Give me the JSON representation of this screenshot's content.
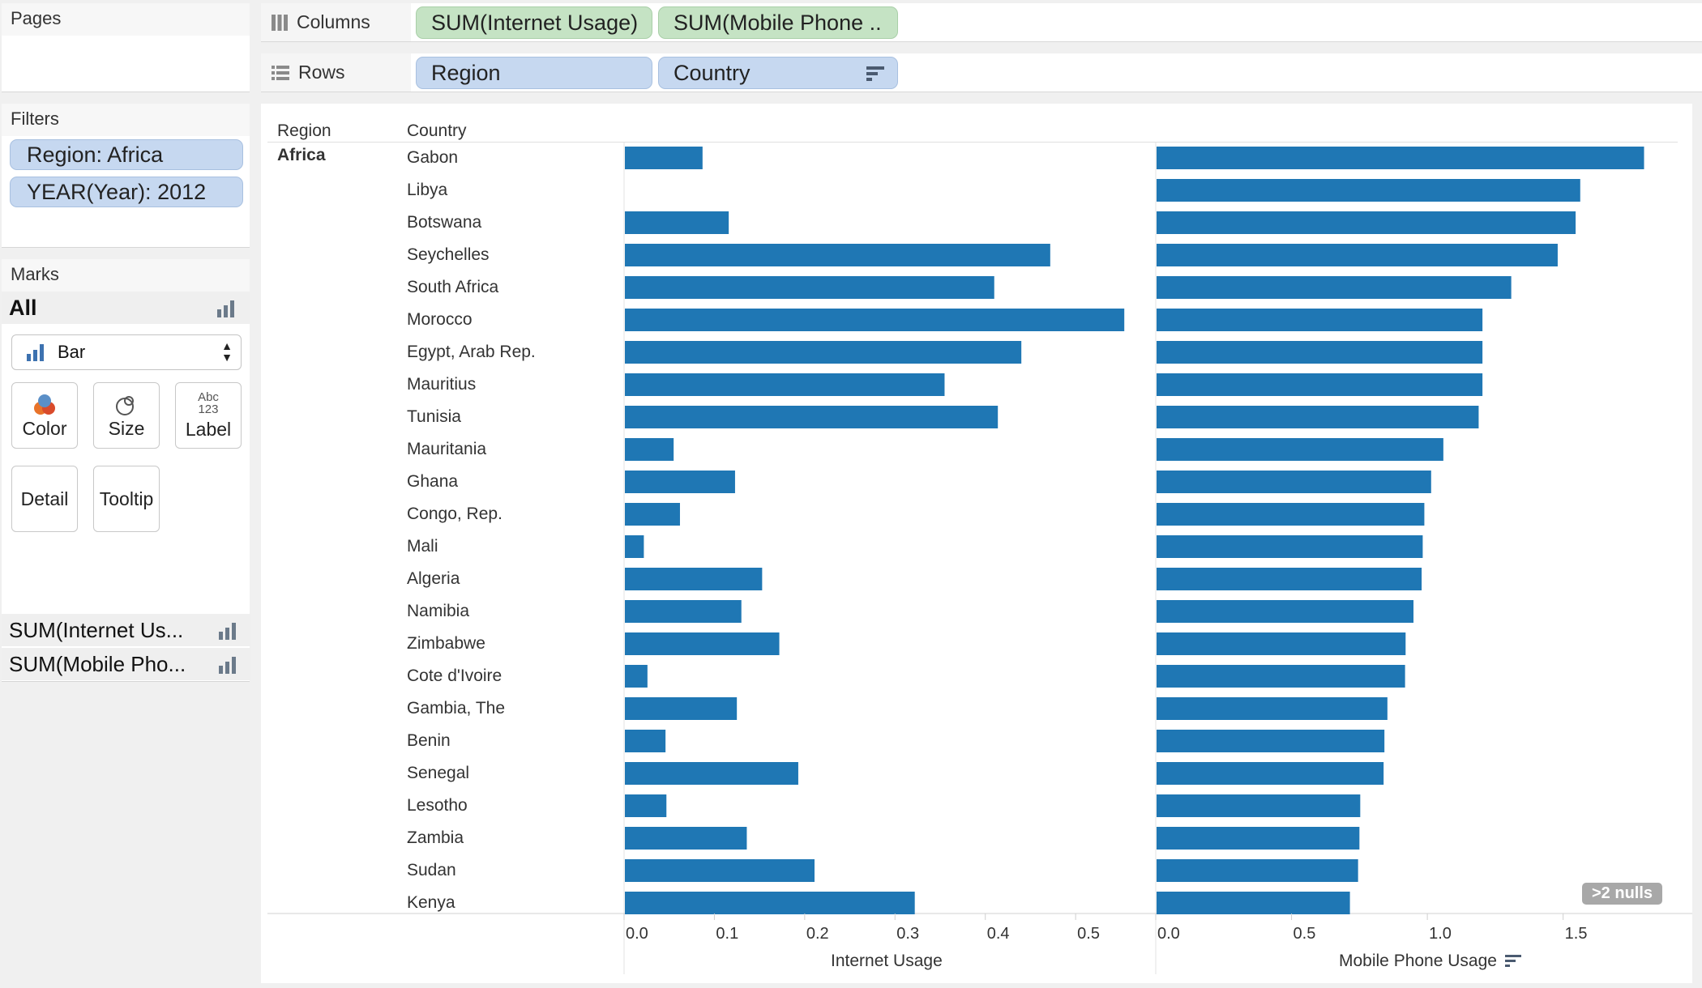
{
  "pages": {
    "title": "Pages"
  },
  "filters": {
    "title": "Filters",
    "items": [
      "Region: Africa",
      "YEAR(Year): 2012"
    ]
  },
  "marks": {
    "title": "Marks",
    "all_label": "All",
    "mark_type": "Bar",
    "cards": [
      {
        "label": "Color",
        "icon": "color-icon"
      },
      {
        "label": "Size",
        "icon": "size-icon"
      },
      {
        "label": "Label",
        "icon": "label-icon",
        "icon_text_top": "Abc",
        "icon_text_bottom": "123"
      },
      {
        "label": "Detail",
        "icon": ""
      },
      {
        "label": "Tooltip",
        "icon": ""
      }
    ],
    "measures": [
      "SUM(Internet Us...",
      "SUM(Mobile Pho..."
    ]
  },
  "shelves": {
    "columns_label": "Columns",
    "columns_pills": [
      "SUM(Internet Usage)",
      "SUM(Mobile Phone .."
    ],
    "rows_label": "Rows",
    "rows_pills": [
      "Region",
      "Country"
    ]
  },
  "view": {
    "region_header": "Region",
    "country_header": "Country",
    "region_value": "Africa",
    "nulls_badge": ">2 nulls"
  },
  "colors": {
    "bar": "#1f77b4",
    "pill_green": "#c5e3c4",
    "pill_blue": "#c6d8f0"
  },
  "chart_data": [
    {
      "type": "bar",
      "orientation": "horizontal",
      "xlabel": "Internet Usage",
      "xlim": [
        0,
        0.56
      ],
      "ticks": [
        "0.0",
        "0.1",
        "0.2",
        "0.3",
        "0.4",
        "0.5"
      ],
      "categories": [
        "Gabon",
        "Libya",
        "Botswana",
        "Seychelles",
        "South Africa",
        "Morocco",
        "Egypt, Arab Rep.",
        "Mauritius",
        "Tunisia",
        "Mauritania",
        "Ghana",
        "Congo, Rep.",
        "Mali",
        "Algeria",
        "Namibia",
        "Zimbabwe",
        "Cote d'Ivoire",
        "Gambia, The",
        "Benin",
        "Senegal",
        "Lesotho",
        "Zambia",
        "Sudan",
        "Kenya"
      ],
      "values": [
        0.086,
        null,
        0.115,
        0.471,
        0.409,
        0.553,
        0.439,
        0.354,
        0.413,
        0.054,
        0.122,
        0.061,
        0.021,
        0.152,
        0.129,
        0.171,
        0.025,
        0.124,
        0.045,
        0.192,
        0.046,
        0.135,
        0.21,
        0.321
      ]
    },
    {
      "type": "bar",
      "orientation": "horizontal",
      "xlabel": "Mobile Phone Usage",
      "xlim": [
        0,
        1.88
      ],
      "ticks": [
        "0.0",
        "0.5",
        "1.0",
        "1.5"
      ],
      "categories": [
        "Gabon",
        "Libya",
        "Botswana",
        "Seychelles",
        "South Africa",
        "Morocco",
        "Egypt, Arab Rep.",
        "Mauritius",
        "Tunisia",
        "Mauritania",
        "Ghana",
        "Congo, Rep.",
        "Mali",
        "Algeria",
        "Namibia",
        "Zimbabwe",
        "Cote d'Ivoire",
        "Gambia, The",
        "Benin",
        "Senegal",
        "Lesotho",
        "Zambia",
        "Sudan",
        "Kenya"
      ],
      "values": [
        1.795,
        1.56,
        1.543,
        1.477,
        1.306,
        1.2,
        1.2,
        1.2,
        1.186,
        1.056,
        1.011,
        0.986,
        0.98,
        0.976,
        0.946,
        0.917,
        0.915,
        0.85,
        0.839,
        0.836,
        0.75,
        0.747,
        0.742,
        0.712
      ]
    }
  ]
}
